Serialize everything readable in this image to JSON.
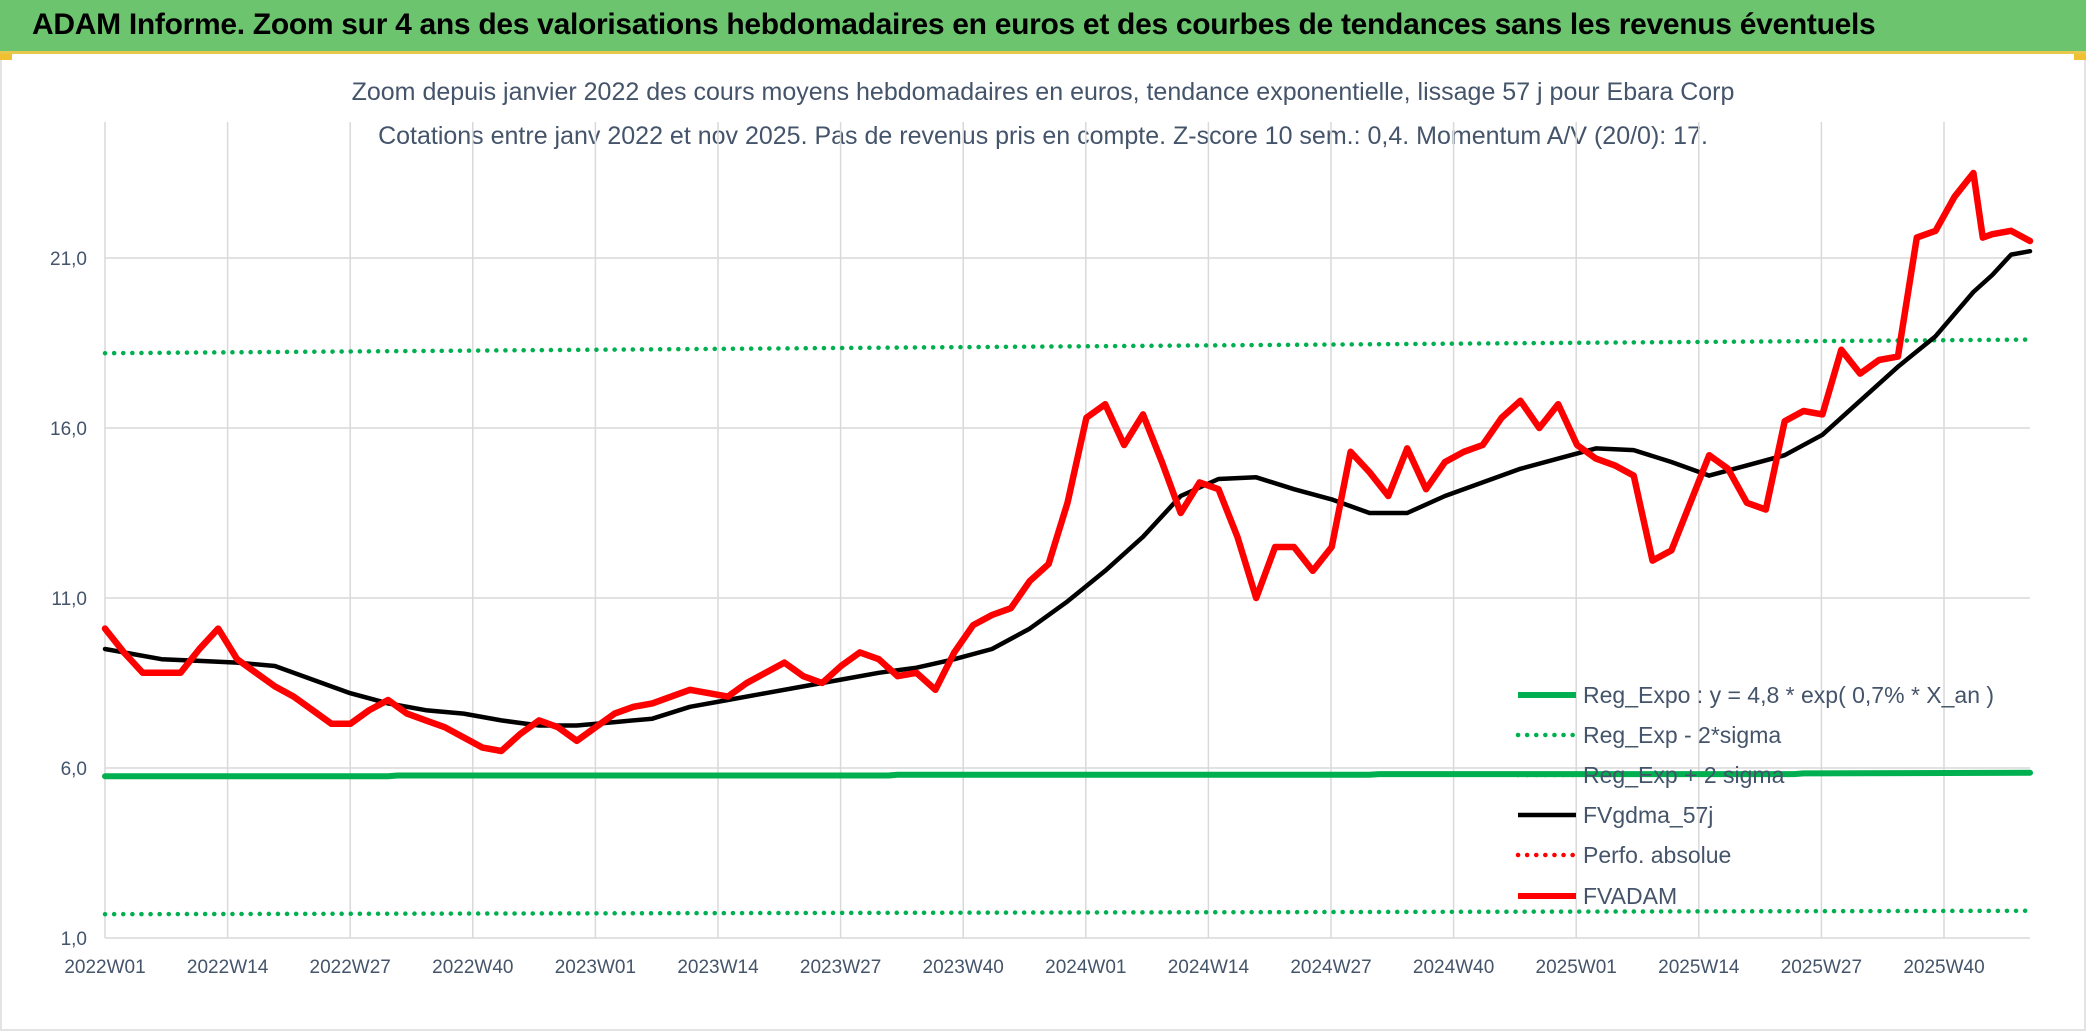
{
  "header": {
    "title": "ADAM Informe. Zoom sur 4 ans des valorisations hebdomadaires en euros et des courbes de tendances sans les revenus éventuels"
  },
  "colors": {
    "banner": "#6cc46f",
    "reg_expo": "#00b050",
    "sigma": "#00b050",
    "fvgdma": "#000000",
    "perfo": "#ff0000",
    "fvadam": "#ff0000",
    "grid": "#d9d9d9",
    "text": "#44546a"
  },
  "chart_data": {
    "type": "line",
    "title": "Zoom depuis janvier 2022 des cours moyens hebdomadaires en euros, tendance exponentielle, lissage 57 j pour Ebara Corp",
    "subtitle": "Cotations entre janv 2022 et nov 2025. Pas de revenus pris en compte. Z-score 10 sem.: 0,4. Momentum A/V (20/0): 17.",
    "xlabel": "",
    "ylabel": "",
    "ylim": [
      1,
      25
    ],
    "y_ticks": [
      "1,0",
      "6,0",
      "11,0",
      "16,0",
      "21,0"
    ],
    "x_ticks": [
      "2022W01",
      "2022W14",
      "2022W27",
      "2022W40",
      "2023W01",
      "2023W14",
      "2023W27",
      "2023W40",
      "2024W01",
      "2024W14",
      "2024W27",
      "2024W40",
      "2025W01",
      "2025W14",
      "2025W27",
      "2025W40"
    ],
    "grid": true,
    "legend_position": "bottom-right",
    "series": [
      {
        "name": "Reg_Expo : y = 4,8 * exp( 0,7% *  X_an )",
        "style": "solid-thick",
        "x": [
          0,
          30,
          31,
          83,
          84,
          134,
          135,
          179,
          180,
          204
        ],
        "values": [
          5.76,
          5.76,
          5.78,
          5.78,
          5.8,
          5.8,
          5.82,
          5.82,
          5.84,
          5.86
        ]
      },
      {
        "name": "Reg_Exp - 2*sigma",
        "style": "dotted",
        "x": [
          0,
          204
        ],
        "values": [
          1.7,
          1.8
        ]
      },
      {
        "name": "Reg_Exp + 2 sigma",
        "style": "dotted",
        "x": [
          0,
          204
        ],
        "values": [
          18.2,
          18.6
        ]
      },
      {
        "name": "FVgdma_57j",
        "style": "solid",
        "x": [
          0,
          3,
          6,
          10,
          14,
          18,
          22,
          26,
          30,
          34,
          38,
          42,
          46,
          50,
          54,
          58,
          62,
          66,
          70,
          74,
          78,
          82,
          86,
          90,
          94,
          98,
          102,
          106,
          110,
          114,
          118,
          122,
          126,
          130,
          134,
          138,
          142,
          146,
          150,
          154,
          158,
          162,
          166,
          170,
          174,
          178,
          182,
          186,
          190,
          194,
          198,
          200,
          202,
          204
        ],
        "values": [
          9.5,
          9.35,
          9.2,
          9.15,
          9.1,
          9.0,
          8.6,
          8.2,
          7.9,
          7.7,
          7.6,
          7.4,
          7.25,
          7.25,
          7.35,
          7.45,
          7.8,
          8.0,
          8.2,
          8.4,
          8.6,
          8.8,
          8.95,
          9.2,
          9.5,
          10.1,
          10.9,
          11.8,
          12.8,
          14.0,
          14.5,
          14.55,
          14.2,
          13.9,
          13.5,
          13.5,
          14.0,
          14.4,
          14.8,
          15.1,
          15.4,
          15.35,
          15.0,
          14.6,
          14.9,
          15.2,
          15.8,
          16.8,
          17.8,
          18.7,
          20.0,
          20.5,
          21.1,
          21.2
        ]
      },
      {
        "name": "Perfo. absolue",
        "style": "dotted",
        "x": [],
        "values": []
      },
      {
        "name": "FVADAM",
        "style": "solid-thick",
        "x": [
          0,
          2,
          4,
          6,
          8,
          10,
          12,
          14,
          16,
          18,
          20,
          22,
          24,
          26,
          28,
          30,
          32,
          34,
          36,
          38,
          40,
          42,
          44,
          46,
          48,
          50,
          52,
          54,
          56,
          58,
          60,
          62,
          64,
          66,
          68,
          70,
          72,
          74,
          76,
          78,
          80,
          82,
          84,
          86,
          88,
          90,
          92,
          94,
          96,
          98,
          100,
          102,
          104,
          106,
          108,
          110,
          112,
          114,
          116,
          118,
          120,
          122,
          124,
          126,
          128,
          130,
          132,
          134,
          136,
          138,
          140,
          142,
          144,
          146,
          148,
          150,
          152,
          154,
          156,
          158,
          160,
          162,
          164,
          166,
          168,
          170,
          172,
          174,
          176,
          178,
          180,
          182,
          184,
          186,
          188,
          190,
          192,
          194,
          196,
          198,
          199,
          200,
          202,
          204
        ],
        "values": [
          10.1,
          9.4,
          8.8,
          8.8,
          8.8,
          9.5,
          10.1,
          9.2,
          8.8,
          8.4,
          8.1,
          7.7,
          7.3,
          7.3,
          7.7,
          8.0,
          7.6,
          7.4,
          7.2,
          6.9,
          6.6,
          6.5,
          7.0,
          7.4,
          7.2,
          6.8,
          7.2,
          7.6,
          7.8,
          7.9,
          8.1,
          8.3,
          8.2,
          8.1,
          8.5,
          8.8,
          9.1,
          8.7,
          8.5,
          9.0,
          9.4,
          9.2,
          8.7,
          8.8,
          8.3,
          9.4,
          10.2,
          10.5,
          10.7,
          11.5,
          12.0,
          13.8,
          16.3,
          16.7,
          15.5,
          16.4,
          15.0,
          13.5,
          14.4,
          14.2,
          12.8,
          11.0,
          12.5,
          12.5,
          11.8,
          12.5,
          15.3,
          14.7,
          14.0,
          15.4,
          14.2,
          15.0,
          15.3,
          15.5,
          16.3,
          16.8,
          16.0,
          16.7,
          15.5,
          15.1,
          14.9,
          14.6,
          12.1,
          12.4,
          13.8,
          15.2,
          14.8,
          13.8,
          13.6,
          16.2,
          16.5,
          16.4,
          18.3,
          17.6,
          18.0,
          18.1,
          21.6,
          21.8,
          22.8,
          23.5,
          21.6,
          21.7,
          21.8,
          21.5
        ]
      }
    ]
  }
}
